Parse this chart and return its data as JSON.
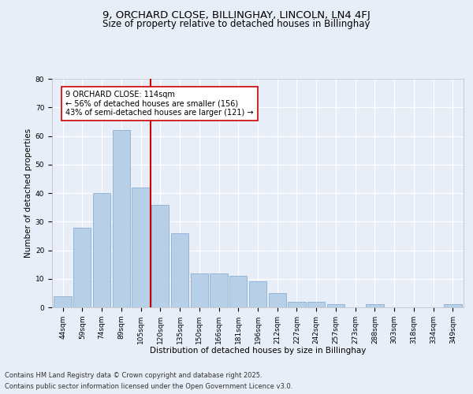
{
  "title": "9, ORCHARD CLOSE, BILLINGHAY, LINCOLN, LN4 4FJ",
  "subtitle": "Size of property relative to detached houses in Billinghay",
  "xlabel": "Distribution of detached houses by size in Billinghay",
  "ylabel": "Number of detached properties",
  "bar_labels": [
    "44sqm",
    "59sqm",
    "74sqm",
    "89sqm",
    "105sqm",
    "120sqm",
    "135sqm",
    "150sqm",
    "166sqm",
    "181sqm",
    "196sqm",
    "212sqm",
    "227sqm",
    "242sqm",
    "257sqm",
    "273sqm",
    "288sqm",
    "303sqm",
    "318sqm",
    "334sqm",
    "349sqm"
  ],
  "bar_values": [
    4,
    28,
    40,
    62,
    42,
    36,
    26,
    12,
    12,
    11,
    9,
    5,
    2,
    2,
    1,
    0,
    1,
    0,
    0,
    0,
    1
  ],
  "bar_color": "#b8cfe8",
  "bar_edge_color": "#8aafd4",
  "background_color": "#e8eef8",
  "grid_color": "#ffffff",
  "vline_x": 4.5,
  "vline_color": "#cc0000",
  "annotation_text": "9 ORCHARD CLOSE: 114sqm\n← 56% of detached houses are smaller (156)\n43% of semi-detached houses are larger (121) →",
  "annotation_box_color": "#ffffff",
  "annotation_box_edge": "#cc0000",
  "ylim": [
    0,
    80
  ],
  "yticks": [
    0,
    10,
    20,
    30,
    40,
    50,
    60,
    70,
    80
  ],
  "footer_line1": "Contains HM Land Registry data © Crown copyright and database right 2025.",
  "footer_line2": "Contains public sector information licensed under the Open Government Licence v3.0.",
  "title_fontsize": 9.5,
  "subtitle_fontsize": 8.5,
  "axis_label_fontsize": 7.5,
  "tick_fontsize": 6.5,
  "annotation_fontsize": 7,
  "footer_fontsize": 6
}
